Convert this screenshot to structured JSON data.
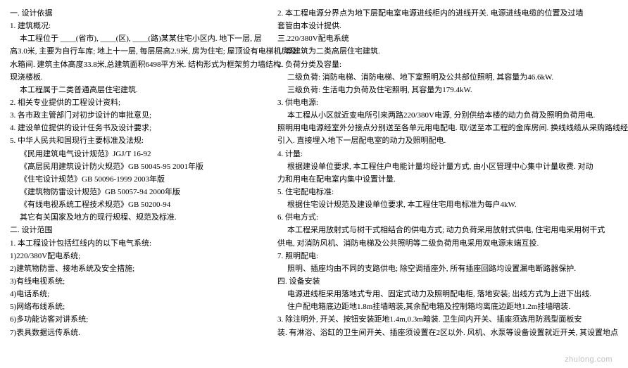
{
  "left": [
    {
      "cls": "line",
      "t": "一.  设计依据"
    },
    {
      "cls": "line",
      "t": "1. 建筑概况:"
    },
    {
      "cls": "line indent1",
      "t": "本工程位于 ____(省市), ____(区), ____(路)某某住宅小区内. 地下一层, 层"
    },
    {
      "cls": "line",
      "t": "高3.0米, 主要为自行车库; 地上十一层, 每层层高2.9米, 房为住宅; 屋顶设有电梯机房及"
    },
    {
      "cls": "line",
      "t": "水箱间. 建筑主体高度33.8米,总建筑面积6498平方米. 结构形式为框架剪力墙结构."
    },
    {
      "cls": "line",
      "t": "现浇楼板."
    },
    {
      "cls": "line indent1",
      "t": "本工程属于二类普通高层住宅建筑."
    },
    {
      "cls": "line",
      "t": "2. 相关专业提供的工程设计资料;"
    },
    {
      "cls": "line",
      "t": "3. 各市政主管部门对初步设计的审批意见;"
    },
    {
      "cls": "line",
      "t": "4. 建设单位提供的设计任务书及设计要求;"
    },
    {
      "cls": "line",
      "t": "5. 中华人民共和国现行主要标准及法规:"
    },
    {
      "cls": "line indent1",
      "t": "《民用建筑电气设计规范》JGJ/T 16-92"
    },
    {
      "cls": "line indent1",
      "t": "《高层民用建筑设计防火规范》GB 50045-95 2001年版"
    },
    {
      "cls": "line indent1",
      "t": "《住宅设计规范》GB 50096-1999 2003年版"
    },
    {
      "cls": "line indent1",
      "t": "《建筑物防雷设计规范》GB 50057-94 2000年版"
    },
    {
      "cls": "line indent1",
      "t": "《有线电视系统工程技术规范》GB 50200-94"
    },
    {
      "cls": "line indent1",
      "t": "其它有关国家及地方的现行规程、规范及标准."
    },
    {
      "cls": "line",
      "t": "二.  设计范围"
    },
    {
      "cls": "line",
      "t": "1. 本工程设计包括红线内的以下电气系统:"
    },
    {
      "cls": "line",
      "t": "1)220/380V配电系统;"
    },
    {
      "cls": "line",
      "t": "2)建筑物防雷、接地系统及安全措施;"
    },
    {
      "cls": "line",
      "t": "3)有线电视系统;"
    },
    {
      "cls": "line",
      "t": "4)电话系统;"
    },
    {
      "cls": "line",
      "t": "5)网络布线系统;"
    },
    {
      "cls": "line",
      "t": "6)多功能访客对讲系统;"
    },
    {
      "cls": "line",
      "t": "7)表具数据远传系统."
    }
  ],
  "right": [
    {
      "cls": "line",
      "t": "2. 本工程电源分界点为地下层配电室电源进线柜内的进线开关. 电源进线电缆的位置及过墙"
    },
    {
      "cls": "line",
      "t": "套管由本设计提供."
    },
    {
      "cls": "line",
      "t": "三.220/380V配电系统"
    },
    {
      "cls": "line",
      "t": "1. 本建筑为二类高层住宅建筑."
    },
    {
      "cls": "line",
      "t": "2. 负荷分类及容量:"
    },
    {
      "cls": "line indent1",
      "t": "二级负荷: 消防电梯、消防电梯、地下室照明及公共部位照明, 其容量为46.6kW."
    },
    {
      "cls": "line indent1",
      "t": "三级负荷: 生活电力负荷及住宅照明, 其容量为179.4kW."
    },
    {
      "cls": "line",
      "t": "3. 供电电源:"
    },
    {
      "cls": "line indent1",
      "t": "本工程从小区就近变电所引来两路220/380V电源, 分别供给本楼的动力负荷及照明负荷用电."
    },
    {
      "cls": "line",
      "t": "照明用电电源经室外分接点分别送至各单元用电配电. 取/送至本工程的金库房间. 换线线缆从采购路线经"
    },
    {
      "cls": "line",
      "t": "引入. 直接埋入地下一层配电室的动力及照明配电."
    },
    {
      "cls": "line",
      "t": "4. 计量:"
    },
    {
      "cls": "line indent1",
      "t": "根据建设单位要求, 本工程住户电能计量均经计量方式, 由小区管理中心集中计量收费. 对动"
    },
    {
      "cls": "line",
      "t": "力和用电在配电室内集中设置计量."
    },
    {
      "cls": "line",
      "t": "5. 住宅配电标准:"
    },
    {
      "cls": "line indent1",
      "t": "根据住宅设计规范及建设单位要求, 本工程住宅用电标准为每户4kW."
    },
    {
      "cls": "line",
      "t": "6. 供电方式:"
    },
    {
      "cls": "line indent1",
      "t": "本工程采用放射式与树干式相结合的供电方式; 动力负荷采用放射式供电, 住宅用电采用树干式"
    },
    {
      "cls": "line",
      "t": "供电, 对消防风机、消防电梯及公共照明等二级负荷用电采用双电源末端互投."
    },
    {
      "cls": "line",
      "t": "7. 照明配电:"
    },
    {
      "cls": "line indent1",
      "t": "照明、插座均由不同的支路供电; 除空调插座外, 所有插座回路均设置漏电断路器保护."
    },
    {
      "cls": "line",
      "t": "四.  设备安装"
    },
    {
      "cls": "line indent1",
      "t": "电源进线柜采用落地式专用、固定式动力及照明配电柜, 落地安装; 出线方式为上进下出线."
    },
    {
      "cls": "line indent1",
      "t": "住户配电箱底边距地1.8m挂墙暗装,其余配电箱及控制箱均离底边距地1.2m挂墙暗装."
    },
    {
      "cls": "line",
      "t": "3. 除注明外, 开关、按钮安装距地1.4m,0.3m暗装. 卫生间内开关、插座须选用防溅型面板安"
    },
    {
      "cls": "line",
      "t": "装. 有淋浴、浴缸的卫生间开关、插座须设置在2区以外. 风机、水泵等设备设置就近开关, 其设置地点"
    }
  ],
  "watermark": "zhulong.com"
}
